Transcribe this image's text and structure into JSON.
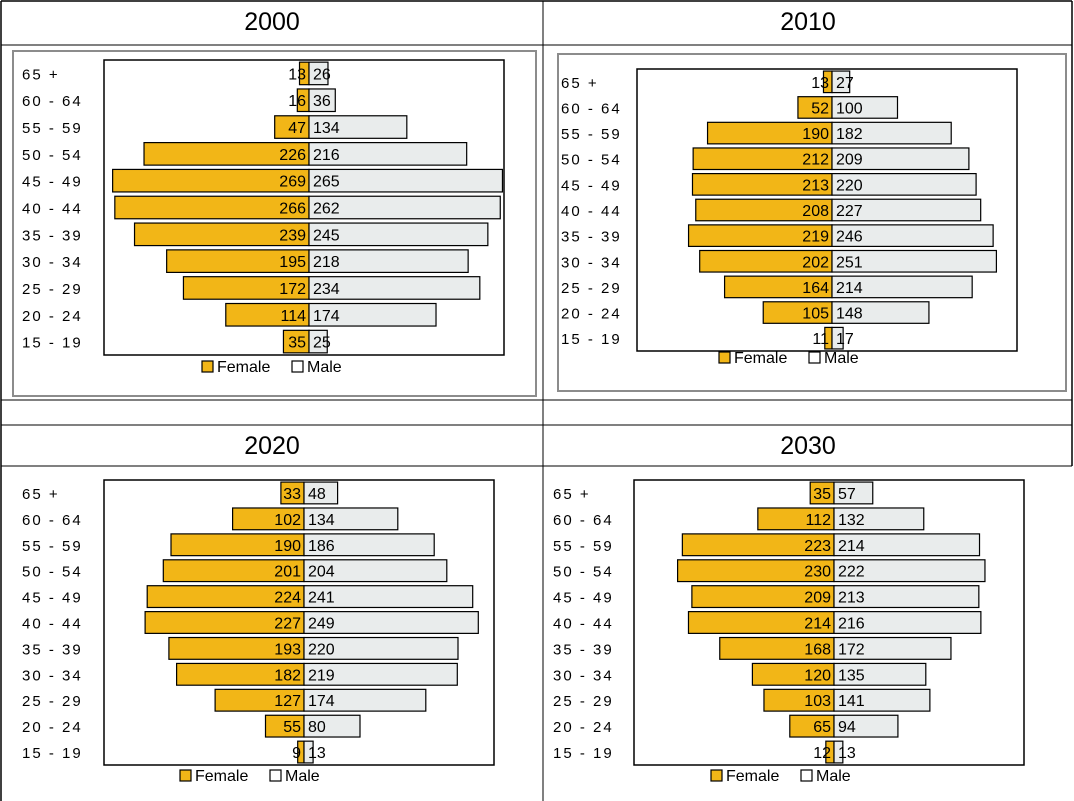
{
  "chart_data": [
    {
      "type": "bar",
      "orientation": "horizontal",
      "title": "2000",
      "categories": [
        "65+",
        "60-64",
        "55-59",
        "50-54",
        "45-49",
        "40-44",
        "35-39",
        "30-34",
        "25-29",
        "20-24",
        "15-19"
      ],
      "series": [
        {
          "name": "Female",
          "values": [
            13,
            16,
            47,
            226,
            269,
            266,
            239,
            195,
            172,
            114,
            35
          ]
        },
        {
          "name": "Male",
          "values": [
            26,
            36,
            134,
            216,
            265,
            262,
            245,
            218,
            234,
            174,
            25
          ]
        }
      ],
      "legend_position": "bottom",
      "grid": false
    },
    {
      "type": "bar",
      "orientation": "horizontal",
      "title": "2010",
      "categories": [
        "65+",
        "60-64",
        "55-59",
        "50-54",
        "45-49",
        "40-44",
        "35-39",
        "30-34",
        "25-29",
        "20-24",
        "15-19"
      ],
      "series": [
        {
          "name": "Female",
          "values": [
            13,
            52,
            190,
            212,
            213,
            208,
            219,
            202,
            164,
            105,
            11
          ]
        },
        {
          "name": "Male",
          "values": [
            27,
            100,
            182,
            209,
            220,
            227,
            246,
            251,
            214,
            148,
            17
          ]
        }
      ],
      "legend_position": "bottom",
      "grid": false
    },
    {
      "type": "bar",
      "orientation": "horizontal",
      "title": "2020",
      "categories": [
        "65+",
        "60-64",
        "55-59",
        "50-54",
        "45-49",
        "40-44",
        "35-39",
        "30-34",
        "25-29",
        "20-24",
        "15-19"
      ],
      "series": [
        {
          "name": "Female",
          "values": [
            33,
            102,
            190,
            201,
            224,
            227,
            193,
            182,
            127,
            55,
            9
          ]
        },
        {
          "name": "Male",
          "values": [
            48,
            134,
            186,
            204,
            241,
            249,
            220,
            219,
            174,
            80,
            13
          ]
        }
      ],
      "legend_position": "bottom",
      "grid": false
    },
    {
      "type": "bar",
      "orientation": "horizontal",
      "title": "2030",
      "categories": [
        "65+",
        "60-64",
        "55-59",
        "50-54",
        "45-49",
        "40-44",
        "35-39",
        "30-34",
        "25-29",
        "20-24",
        "15-19"
      ],
      "series": [
        {
          "name": "Female",
          "values": [
            35,
            112,
            223,
            230,
            209,
            214,
            168,
            120,
            103,
            65,
            12
          ]
        },
        {
          "name": "Male",
          "values": [
            57,
            132,
            214,
            222,
            213,
            216,
            172,
            135,
            141,
            94,
            13
          ]
        }
      ],
      "legend_position": "bottom",
      "grid": false
    }
  ],
  "colors": {
    "female": "#F2B617",
    "male": "#E9ECEC",
    "border": "#000000",
    "frame": "#8C8C8C"
  }
}
